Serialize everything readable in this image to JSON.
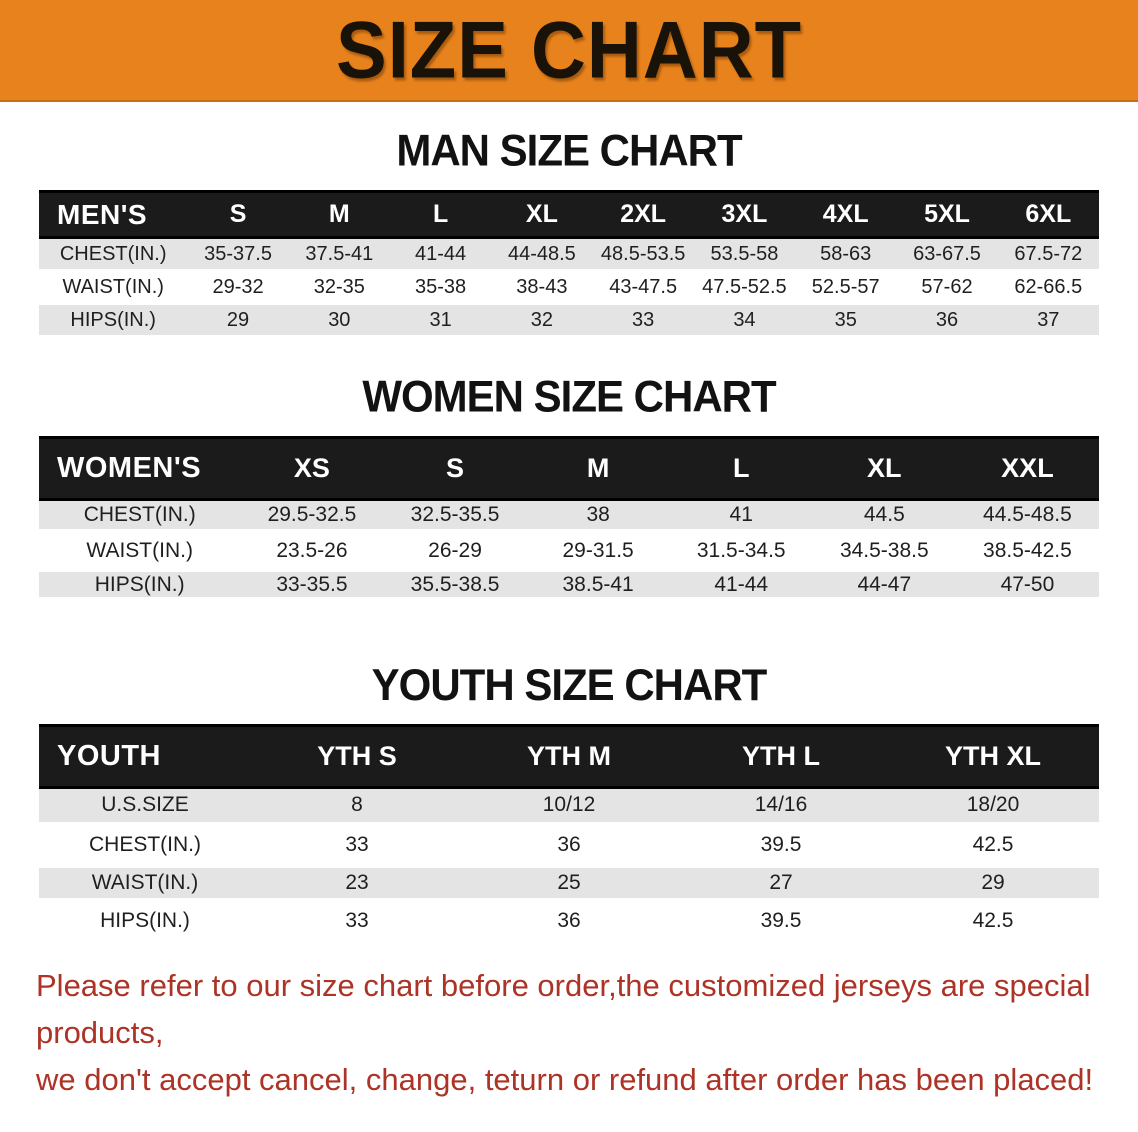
{
  "banner": {
    "title": "SIZE CHART",
    "background_color": "#E8821C",
    "text_color": "#181208"
  },
  "sections": [
    {
      "id": "men",
      "heading": "MAN SIZE CHART",
      "table": {
        "header": [
          "MEN'S",
          "S",
          "M",
          "L",
          "XL",
          "2XL",
          "3XL",
          "4XL",
          "5XL",
          "6XL"
        ],
        "rows": [
          {
            "label": "CHEST(IN.)",
            "values": [
              "35-37.5",
              "37.5-41",
              "41-44",
              "44-48.5",
              "48.5-53.5",
              "53.5-58",
              "58-63",
              "63-67.5",
              "67.5-72"
            ]
          },
          {
            "label": "WAIST(IN.)",
            "values": [
              "29-32",
              "32-35",
              "35-38",
              "38-43",
              "43-47.5",
              "47.5-52.5",
              "52.5-57",
              "57-62",
              "62-66.5"
            ]
          },
          {
            "label": "HIPS(IN.)",
            "values": [
              "29",
              "30",
              "31",
              "32",
              "33",
              "34",
              "35",
              "36",
              "37"
            ]
          }
        ]
      }
    },
    {
      "id": "women",
      "heading": "WOMEN SIZE CHART",
      "table": {
        "header": [
          "WOMEN'S",
          "XS",
          "S",
          "M",
          "L",
          "XL",
          "XXL"
        ],
        "rows": [
          {
            "label": "CHEST(IN.)",
            "values": [
              "29.5-32.5",
              "32.5-35.5",
              "38",
              "41",
              "44.5",
              "44.5-48.5"
            ]
          },
          {
            "label": "WAIST(IN.)",
            "values": [
              "23.5-26",
              "26-29",
              "29-31.5",
              "31.5-34.5",
              "34.5-38.5",
              "38.5-42.5"
            ]
          },
          {
            "label": "HIPS(IN.)",
            "values": [
              "33-35.5",
              "35.5-38.5",
              "38.5-41",
              "41-44",
              "44-47",
              "47-50"
            ]
          }
        ]
      }
    },
    {
      "id": "youth",
      "heading": "YOUTH SIZE CHART",
      "table": {
        "header": [
          "YOUTH",
          "YTH S",
          "YTH M",
          "YTH L",
          "YTH XL"
        ],
        "rows": [
          {
            "label": "U.S.SIZE",
            "values": [
              "8",
              "10/12",
              "14/16",
              "18/20"
            ]
          },
          {
            "label": "CHEST(IN.)",
            "values": [
              "33",
              "36",
              "39.5",
              "42.5"
            ]
          },
          {
            "label": "WAIST(IN.)",
            "values": [
              "23",
              "25",
              "27",
              "29"
            ]
          },
          {
            "label": "HIPS(IN.)",
            "values": [
              "33",
              "36",
              "39.5",
              "42.5"
            ]
          }
        ]
      }
    }
  ],
  "footnote": {
    "color": "#AC3326",
    "lines": [
      "Please refer to our size chart before order,the customized jerseys are special products,",
      "we don't accept cancel, change, teturn or refund after order has been placed!"
    ]
  }
}
